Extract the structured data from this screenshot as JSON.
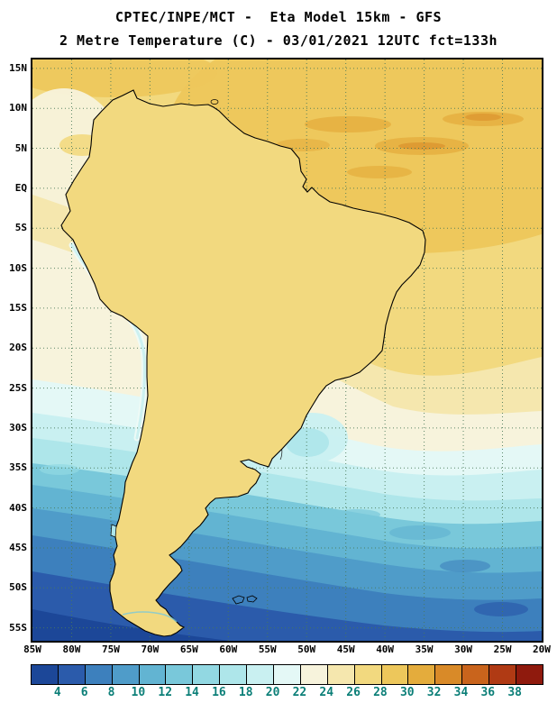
{
  "header": {
    "line1": "CPTEC/INPE/MCT -  Eta Model 15km - GFS",
    "line2": "2 Metre Temperature (C) - 03/01/2021 12UTC fct=133h"
  },
  "map": {
    "lat_labels": [
      "15N",
      "10N",
      "5N",
      "EQ",
      "5S",
      "10S",
      "15S",
      "20S",
      "25S",
      "30S",
      "35S",
      "40S",
      "45S",
      "50S",
      "55S"
    ],
    "lon_labels": [
      "85W",
      "80W",
      "75W",
      "70W",
      "65W",
      "60W",
      "55W",
      "50W",
      "45W",
      "40W",
      "35W",
      "30W",
      "25W",
      "20W"
    ],
    "grid_color": "#4a7a5a",
    "frame_color": "#000000"
  },
  "colorbar": {
    "tick_labels": [
      "4",
      "6",
      "8",
      "10",
      "12",
      "14",
      "16",
      "18",
      "20",
      "22",
      "24",
      "26",
      "28",
      "30",
      "32",
      "34",
      "36",
      "38"
    ],
    "segment_colors": [
      "#1c4798",
      "#2b5bab",
      "#3d80bd",
      "#4f9cc9",
      "#62b4d2",
      "#79c8da",
      "#92d8e2",
      "#aee6ea",
      "#c9f0f1",
      "#e4f8f6",
      "#f7f3dc",
      "#f5e7ae",
      "#f2d97f",
      "#edc75b",
      "#e4ac3c",
      "#d98a28",
      "#c9641c",
      "#b03a14",
      "#8f1a0d"
    ],
    "tick_color": "#0c7f78",
    "border_color": "#000000"
  }
}
